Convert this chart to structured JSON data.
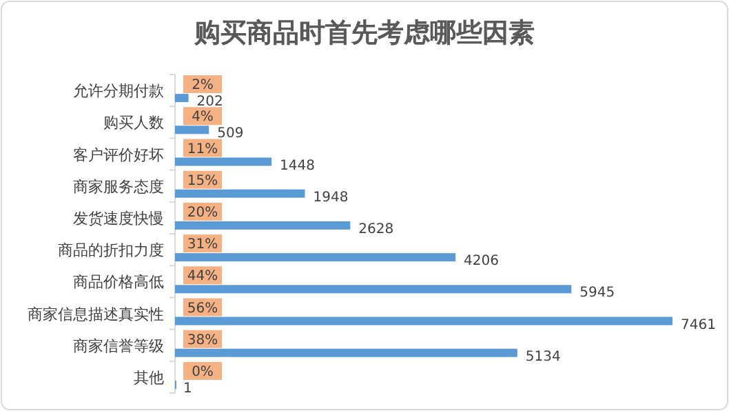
{
  "chart_data": {
    "type": "bar",
    "orientation": "horizontal",
    "title": "购买商品时首先考虑哪些因素",
    "categories": [
      "允许分期付款",
      "购买人数",
      "客户评价好坏",
      "商家服务态度",
      "发货速度快慢",
      "商品的折扣力度",
      "商品价格高低",
      "商家信息描述真实性",
      "商家信誉等级",
      "其他"
    ],
    "values": [
      202,
      509,
      1448,
      1948,
      2628,
      4206,
      5945,
      7461,
      5134,
      1
    ],
    "color": "#5b9bd5",
    "data_labels": true,
    "annotations": [
      "2%",
      "4%",
      "11%",
      "15%",
      "20%",
      "31%",
      "44%",
      "56%",
      "38%",
      "0%"
    ]
  }
}
